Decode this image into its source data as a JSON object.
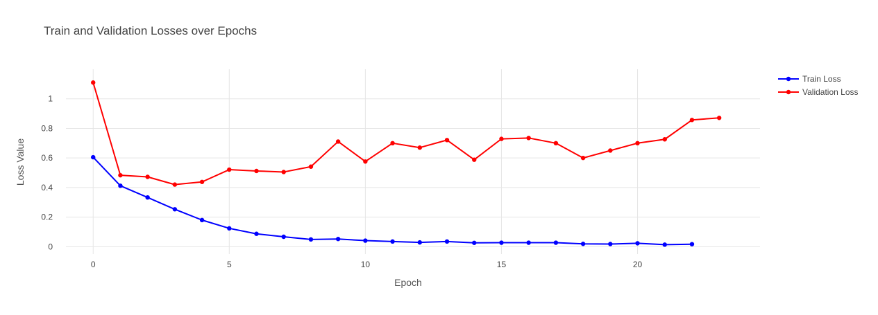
{
  "chart_data": {
    "type": "line",
    "title": "Train and Validation Losses over Epochs",
    "xlabel": "Epoch",
    "ylabel": "Loss Value",
    "xlim": [
      -1,
      24.5
    ],
    "ylim": [
      -0.05,
      1.2
    ],
    "xticks": [
      0,
      5,
      10,
      15,
      20
    ],
    "yticks": [
      0,
      0.2,
      0.4,
      0.6,
      0.8,
      1
    ],
    "ytick_labels": [
      "0",
      "0.2",
      "0.4",
      "0.6",
      "0.8",
      "1"
    ],
    "grid": true,
    "legend_position": "top-right",
    "series": [
      {
        "name": "Train Loss",
        "color": "#0000ff",
        "x": [
          0,
          1,
          2,
          3,
          4,
          5,
          6,
          7,
          8,
          9,
          10,
          11,
          12,
          13,
          14,
          15,
          16,
          17,
          18,
          19,
          20,
          21,
          22
        ],
        "values": [
          0.605,
          0.412,
          0.333,
          0.253,
          0.18,
          0.124,
          0.087,
          0.067,
          0.049,
          0.052,
          0.041,
          0.035,
          0.029,
          0.035,
          0.026,
          0.027,
          0.027,
          0.027,
          0.019,
          0.018,
          0.023,
          0.014,
          0.017
        ]
      },
      {
        "name": "Validation Loss",
        "color": "#ff0000",
        "x": [
          0,
          1,
          2,
          3,
          4,
          5,
          6,
          7,
          8,
          9,
          10,
          11,
          12,
          13,
          14,
          15,
          16,
          17,
          18,
          19,
          20,
          21,
          22,
          23
        ],
        "values": [
          1.11,
          0.483,
          0.472,
          0.42,
          0.438,
          0.521,
          0.512,
          0.505,
          0.541,
          0.711,
          0.576,
          0.7,
          0.67,
          0.721,
          0.588,
          0.729,
          0.735,
          0.7,
          0.6,
          0.65,
          0.7,
          0.726,
          0.857,
          0.871
        ]
      }
    ]
  }
}
